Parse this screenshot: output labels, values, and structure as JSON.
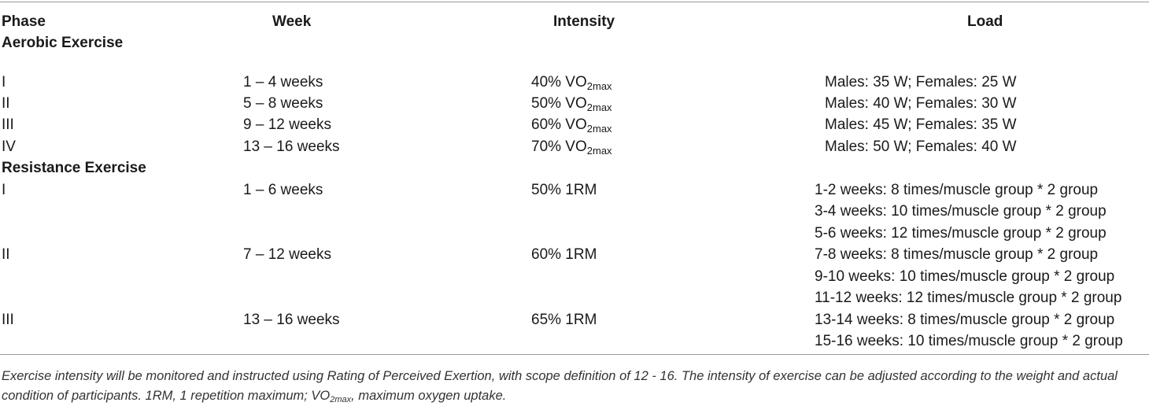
{
  "table": {
    "headers": {
      "phase": "Phase",
      "week": "Week",
      "intensity": "Intensity",
      "load": "Load"
    },
    "sections": [
      {
        "title": "Aerobic Exercise",
        "rows": [
          {
            "phase": "I",
            "week": "1 – 4 weeks",
            "intensity_prefix": "40% VO",
            "intensity_sub": "2max",
            "load": [
              "Males: 35 W; Females: 25 W"
            ]
          },
          {
            "phase": "II",
            "week": "5 – 8 weeks",
            "intensity_prefix": "50% VO",
            "intensity_sub": "2max",
            "load": [
              "Males: 40 W; Females: 30 W"
            ]
          },
          {
            "phase": "III",
            "week": "9 – 12 weeks",
            "intensity_prefix": "60% VO",
            "intensity_sub": "2max",
            "load": [
              "Males: 45 W; Females: 35 W"
            ]
          },
          {
            "phase": "IV",
            "week": "13 – 16 weeks",
            "intensity_prefix": "70% VO",
            "intensity_sub": "2max",
            "load": [
              "Males: 50 W; Females: 40 W"
            ]
          }
        ]
      },
      {
        "title": "Resistance Exercise",
        "rows": [
          {
            "phase": "I",
            "week": "1 – 6 weeks",
            "intensity_prefix": "50% 1RM",
            "load": [
              "1-2 weeks: 8 times/muscle group * 2 group",
              "3-4 weeks: 10 times/muscle group * 2 group",
              "5-6 weeks: 12 times/muscle group * 2 group"
            ]
          },
          {
            "phase": "II",
            "week": "7 – 12 weeks",
            "intensity_prefix": "60% 1RM",
            "load": [
              "7-8 weeks: 8 times/muscle group * 2 group",
              "9-10 weeks: 10 times/muscle group * 2 group",
              "11-12 weeks: 12 times/muscle group * 2 group"
            ]
          },
          {
            "phase": "III",
            "week": "13 – 16 weeks",
            "intensity_prefix": "65% 1RM",
            "load": [
              "13-14 weeks: 8 times/muscle group * 2 group",
              "15-16 weeks: 10 times/muscle group * 2 group"
            ]
          }
        ]
      }
    ]
  },
  "footnote": {
    "part1": "Exercise intensity will be monitored and instructed using Rating of Perceived Exertion, with scope definition of 12 - 16. The intensity of exercise can be adjusted according to the weight and actual condition of participants. 1RM, 1 repetition maximum; VO",
    "sub": "2max",
    "part2": ", maximum oxygen uptake."
  }
}
